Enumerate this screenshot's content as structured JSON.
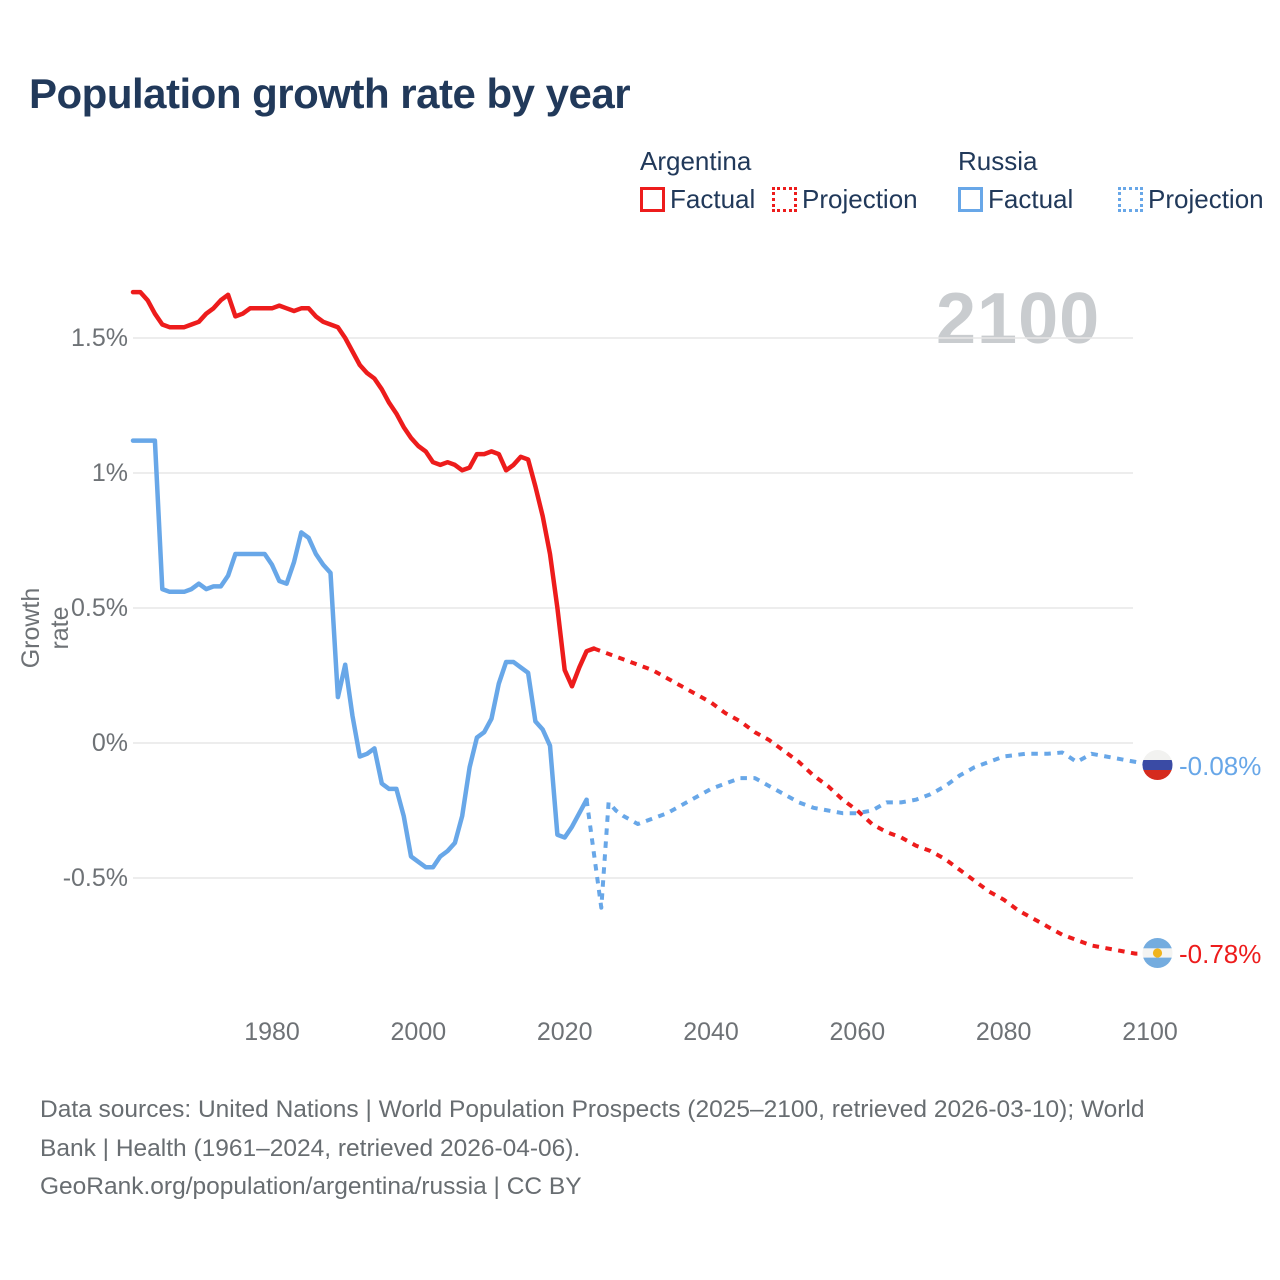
{
  "title": "Population growth rate by year",
  "watermark": "2100",
  "legend": {
    "argentina": {
      "label": "Argentina",
      "factual": "Factual",
      "projection": "Projection"
    },
    "russia": {
      "label": "Russia",
      "factual": "Factual",
      "projection": "Projection"
    }
  },
  "end_labels": {
    "russia": "-0.08%",
    "argentina": "-0.78%"
  },
  "footer": {
    "line1": "Data sources: United Nations | World Population Prospects (2025–2100, retrieved 2026-03-10); World",
    "line2": "Bank | Health (1961–2024, retrieved 2026-04-06).",
    "line3": "GeoRank.org/population/argentina/russia | CC BY"
  },
  "colors": {
    "arg-red": "#ed1c1c",
    "rus-blue": "#68a7e8",
    "navy": "#21395a",
    "tick-gray": "#6e7276",
    "footer-gray": "#686d71",
    "watermark-gray": "#c9cccf",
    "gridline": "#e7e7e7"
  },
  "chart_data": {
    "type": "line",
    "title": "Population growth rate by year",
    "xlabel": "",
    "ylabel": "Growth rate",
    "x_range": [
      1961,
      2100
    ],
    "ylim": [
      -0.9,
      1.8
    ],
    "grid": true,
    "legend_position": "top-right",
    "y_ticks": [
      {
        "label": "1.5%",
        "value": 1.5
      },
      {
        "label": "1%",
        "value": 1.0
      },
      {
        "label": "0.5%",
        "value": 0.5
      },
      {
        "label": "0%",
        "value": 0.0
      },
      {
        "label": "-0.5%",
        "value": -0.5
      }
    ],
    "x_ticks": [
      {
        "label": "1980",
        "value": 1980
      },
      {
        "label": "2000",
        "value": 2000
      },
      {
        "label": "2020",
        "value": 2020
      },
      {
        "label": "2040",
        "value": 2040
      },
      {
        "label": "2060",
        "value": 2060
      },
      {
        "label": "2080",
        "value": 2080
      },
      {
        "label": "2100",
        "value": 2100
      }
    ],
    "series": [
      {
        "name": "argentina-factual",
        "country": "Argentina",
        "kind": "Factual",
        "style": "solid",
        "color": "#ed1c1c",
        "points": [
          [
            1961,
            1.67
          ],
          [
            1962,
            1.67
          ],
          [
            1963,
            1.64
          ],
          [
            1964,
            1.59
          ],
          [
            1965,
            1.55
          ],
          [
            1966,
            1.54
          ],
          [
            1967,
            1.54
          ],
          [
            1968,
            1.54
          ],
          [
            1969,
            1.55
          ],
          [
            1970,
            1.56
          ],
          [
            1971,
            1.59
          ],
          [
            1972,
            1.61
          ],
          [
            1973,
            1.64
          ],
          [
            1974,
            1.66
          ],
          [
            1975,
            1.58
          ],
          [
            1976,
            1.59
          ],
          [
            1977,
            1.61
          ],
          [
            1978,
            1.61
          ],
          [
            1979,
            1.61
          ],
          [
            1980,
            1.61
          ],
          [
            1981,
            1.62
          ],
          [
            1982,
            1.61
          ],
          [
            1983,
            1.6
          ],
          [
            1984,
            1.61
          ],
          [
            1985,
            1.61
          ],
          [
            1986,
            1.58
          ],
          [
            1987,
            1.56
          ],
          [
            1988,
            1.55
          ],
          [
            1989,
            1.54
          ],
          [
            1990,
            1.5
          ],
          [
            1991,
            1.45
          ],
          [
            1992,
            1.4
          ],
          [
            1993,
            1.37
          ],
          [
            1994,
            1.35
          ],
          [
            1995,
            1.31
          ],
          [
            1996,
            1.26
          ],
          [
            1997,
            1.22
          ],
          [
            1998,
            1.17
          ],
          [
            1999,
            1.13
          ],
          [
            2000,
            1.1
          ],
          [
            2001,
            1.08
          ],
          [
            2002,
            1.04
          ],
          [
            2003,
            1.03
          ],
          [
            2004,
            1.04
          ],
          [
            2005,
            1.03
          ],
          [
            2006,
            1.01
          ],
          [
            2007,
            1.02
          ],
          [
            2008,
            1.07
          ],
          [
            2009,
            1.07
          ],
          [
            2010,
            1.08
          ],
          [
            2011,
            1.07
          ],
          [
            2012,
            1.01
          ],
          [
            2013,
            1.03
          ],
          [
            2014,
            1.06
          ],
          [
            2015,
            1.05
          ],
          [
            2016,
            0.95
          ],
          [
            2017,
            0.84
          ],
          [
            2018,
            0.7
          ],
          [
            2019,
            0.5
          ],
          [
            2020,
            0.27
          ],
          [
            2021,
            0.21
          ],
          [
            2022,
            0.28
          ],
          [
            2023,
            0.34
          ],
          [
            2024,
            0.35
          ]
        ]
      },
      {
        "name": "argentina-projection",
        "country": "Argentina",
        "kind": "Projection",
        "style": "dashed",
        "color": "#ed1c1c",
        "points": [
          [
            2024,
            0.35
          ],
          [
            2026,
            0.33
          ],
          [
            2028,
            0.31
          ],
          [
            2030,
            0.29
          ],
          [
            2032,
            0.27
          ],
          [
            2034,
            0.24
          ],
          [
            2036,
            0.21
          ],
          [
            2038,
            0.18
          ],
          [
            2040,
            0.15
          ],
          [
            2042,
            0.11
          ],
          [
            2044,
            0.08
          ],
          [
            2046,
            0.04
          ],
          [
            2048,
            0.01
          ],
          [
            2050,
            -0.03
          ],
          [
            2052,
            -0.07
          ],
          [
            2054,
            -0.12
          ],
          [
            2056,
            -0.16
          ],
          [
            2058,
            -0.21
          ],
          [
            2060,
            -0.25
          ],
          [
            2062,
            -0.3
          ],
          [
            2064,
            -0.33
          ],
          [
            2066,
            -0.35
          ],
          [
            2068,
            -0.38
          ],
          [
            2070,
            -0.4
          ],
          [
            2072,
            -0.43
          ],
          [
            2074,
            -0.47
          ],
          [
            2076,
            -0.51
          ],
          [
            2078,
            -0.55
          ],
          [
            2080,
            -0.58
          ],
          [
            2082,
            -0.62
          ],
          [
            2084,
            -0.65
          ],
          [
            2086,
            -0.68
          ],
          [
            2088,
            -0.71
          ],
          [
            2090,
            -0.73
          ],
          [
            2092,
            -0.75
          ],
          [
            2094,
            -0.76
          ],
          [
            2096,
            -0.77
          ],
          [
            2098,
            -0.78
          ],
          [
            2100,
            -0.78
          ]
        ]
      },
      {
        "name": "russia-factual",
        "country": "Russia",
        "kind": "Factual",
        "style": "solid",
        "color": "#68a7e8",
        "points": [
          [
            1961,
            1.12
          ],
          [
            1962,
            1.12
          ],
          [
            1963,
            1.12
          ],
          [
            1964,
            1.12
          ],
          [
            1965,
            0.57
          ],
          [
            1966,
            0.56
          ],
          [
            1967,
            0.56
          ],
          [
            1968,
            0.56
          ],
          [
            1969,
            0.57
          ],
          [
            1970,
            0.59
          ],
          [
            1971,
            0.57
          ],
          [
            1972,
            0.58
          ],
          [
            1973,
            0.58
          ],
          [
            1974,
            0.62
          ],
          [
            1975,
            0.7
          ],
          [
            1976,
            0.7
          ],
          [
            1977,
            0.7
          ],
          [
            1978,
            0.7
          ],
          [
            1979,
            0.7
          ],
          [
            1980,
            0.66
          ],
          [
            1981,
            0.6
          ],
          [
            1982,
            0.59
          ],
          [
            1983,
            0.67
          ],
          [
            1984,
            0.78
          ],
          [
            1985,
            0.76
          ],
          [
            1986,
            0.7
          ],
          [
            1987,
            0.66
          ],
          [
            1988,
            0.63
          ],
          [
            1989,
            0.17
          ],
          [
            1990,
            0.29
          ],
          [
            1991,
            0.1
          ],
          [
            1992,
            -0.05
          ],
          [
            1993,
            -0.04
          ],
          [
            1994,
            -0.02
          ],
          [
            1995,
            -0.15
          ],
          [
            1996,
            -0.17
          ],
          [
            1997,
            -0.17
          ],
          [
            1998,
            -0.27
          ],
          [
            1999,
            -0.42
          ],
          [
            2000,
            -0.44
          ],
          [
            2001,
            -0.46
          ],
          [
            2002,
            -0.46
          ],
          [
            2003,
            -0.42
          ],
          [
            2004,
            -0.4
          ],
          [
            2005,
            -0.37
          ],
          [
            2006,
            -0.27
          ],
          [
            2007,
            -0.09
          ],
          [
            2008,
            0.02
          ],
          [
            2009,
            0.04
          ],
          [
            2010,
            0.09
          ],
          [
            2011,
            0.22
          ],
          [
            2012,
            0.3
          ],
          [
            2013,
            0.3
          ],
          [
            2014,
            0.28
          ],
          [
            2015,
            0.26
          ],
          [
            2016,
            0.08
          ],
          [
            2017,
            0.05
          ],
          [
            2018,
            -0.01
          ],
          [
            2019,
            -0.34
          ],
          [
            2020,
            -0.35
          ],
          [
            2021,
            -0.31
          ],
          [
            2022,
            -0.26
          ],
          [
            2023,
            -0.21
          ]
        ]
      },
      {
        "name": "russia-projection",
        "country": "Russia",
        "kind": "Projection",
        "style": "dashed",
        "color": "#68a7e8",
        "points": [
          [
            2023,
            -0.21
          ],
          [
            2025,
            -0.61
          ],
          [
            2026,
            -0.22
          ],
          [
            2027,
            -0.25
          ],
          [
            2028,
            -0.27
          ],
          [
            2030,
            -0.3
          ],
          [
            2032,
            -0.28
          ],
          [
            2034,
            -0.26
          ],
          [
            2036,
            -0.23
          ],
          [
            2038,
            -0.2
          ],
          [
            2040,
            -0.17
          ],
          [
            2042,
            -0.15
          ],
          [
            2044,
            -0.13
          ],
          [
            2046,
            -0.13
          ],
          [
            2048,
            -0.16
          ],
          [
            2050,
            -0.19
          ],
          [
            2052,
            -0.22
          ],
          [
            2054,
            -0.24
          ],
          [
            2056,
            -0.25
          ],
          [
            2058,
            -0.26
          ],
          [
            2060,
            -0.26
          ],
          [
            2062,
            -0.25
          ],
          [
            2064,
            -0.22
          ],
          [
            2066,
            -0.22
          ],
          [
            2068,
            -0.21
          ],
          [
            2070,
            -0.19
          ],
          [
            2072,
            -0.16
          ],
          [
            2074,
            -0.12
          ],
          [
            2076,
            -0.09
          ],
          [
            2078,
            -0.07
          ],
          [
            2080,
            -0.05
          ],
          [
            2083,
            -0.04
          ],
          [
            2086,
            -0.04
          ],
          [
            2088,
            -0.035
          ],
          [
            2090,
            -0.07
          ],
          [
            2092,
            -0.04
          ],
          [
            2094,
            -0.05
          ],
          [
            2096,
            -0.06
          ],
          [
            2098,
            -0.07
          ],
          [
            2100,
            -0.08
          ]
        ]
      }
    ]
  }
}
